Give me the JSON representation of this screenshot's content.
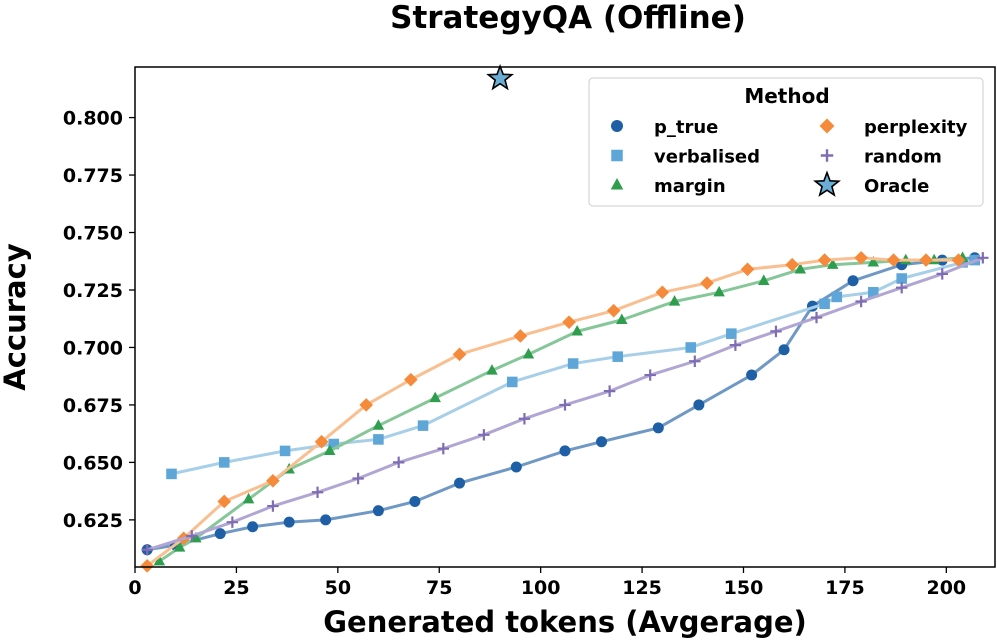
{
  "chart_data": {
    "type": "line",
    "title": "StrategyQA (Offline)",
    "xlabel": "Generated tokens (Avgerage)",
    "ylabel": "Accuracy",
    "xlim": [
      0,
      212
    ],
    "ylim": [
      0.6045,
      0.822
    ],
    "x_ticks": [
      "0",
      "25",
      "50",
      "75",
      "100",
      "125",
      "150",
      "175",
      "200"
    ],
    "x_tick_values": [
      0,
      25,
      50,
      75,
      100,
      125,
      150,
      175,
      200
    ],
    "y_ticks": [
      "0.625",
      "0.650",
      "0.675",
      "0.700",
      "0.725",
      "0.750",
      "0.775",
      "0.800"
    ],
    "y_tick_values": [
      0.625,
      0.65,
      0.675,
      0.7,
      0.725,
      0.75,
      0.775,
      0.8
    ],
    "grid": false,
    "legend": {
      "title": "Method",
      "placement": "top-right",
      "columns": 2
    },
    "series": [
      {
        "name": "p_true",
        "marker": "circle",
        "color": "#1f5fa6",
        "line_color": "#6f98c4",
        "points": [
          [
            3,
            0.612
          ],
          [
            10,
            0.614
          ],
          [
            21,
            0.619
          ],
          [
            29,
            0.622
          ],
          [
            38,
            0.624
          ],
          [
            47,
            0.625
          ],
          [
            60,
            0.629
          ],
          [
            69,
            0.633
          ],
          [
            80,
            0.641
          ],
          [
            94,
            0.648
          ],
          [
            106,
            0.655
          ],
          [
            115,
            0.659
          ],
          [
            129,
            0.665
          ],
          [
            139,
            0.675
          ],
          [
            152,
            0.688
          ],
          [
            160,
            0.699
          ],
          [
            167,
            0.718
          ],
          [
            177,
            0.729
          ],
          [
            189,
            0.736
          ],
          [
            199,
            0.738
          ],
          [
            207,
            0.739
          ]
        ]
      },
      {
        "name": "verbalised",
        "marker": "square",
        "color": "#5fa6d8",
        "line_color": "#a8cfe8",
        "points": [
          [
            9,
            0.645
          ],
          [
            22,
            0.65
          ],
          [
            37,
            0.655
          ],
          [
            49,
            0.658
          ],
          [
            60,
            0.66
          ],
          [
            71,
            0.666
          ],
          [
            93,
            0.685
          ],
          [
            108,
            0.693
          ],
          [
            119,
            0.696
          ],
          [
            137,
            0.7
          ],
          [
            147,
            0.706
          ],
          [
            170,
            0.719
          ],
          [
            173,
            0.722
          ],
          [
            182,
            0.724
          ],
          [
            189,
            0.73
          ],
          [
            204,
            0.737
          ],
          [
            207,
            0.738
          ]
        ]
      },
      {
        "name": "margin",
        "marker": "triangle",
        "color": "#2e9e4e",
        "line_color": "#86c799",
        "points": [
          [
            6,
            0.607
          ],
          [
            11,
            0.613
          ],
          [
            15,
            0.617
          ],
          [
            28,
            0.634
          ],
          [
            38,
            0.647
          ],
          [
            48,
            0.655
          ],
          [
            60,
            0.666
          ],
          [
            74,
            0.678
          ],
          [
            88,
            0.69
          ],
          [
            97,
            0.697
          ],
          [
            109,
            0.707
          ],
          [
            120,
            0.712
          ],
          [
            133,
            0.72
          ],
          [
            144,
            0.724
          ],
          [
            155,
            0.729
          ],
          [
            164,
            0.734
          ],
          [
            172,
            0.736
          ],
          [
            182,
            0.737
          ],
          [
            190,
            0.738
          ],
          [
            197,
            0.738
          ],
          [
            204,
            0.739
          ]
        ]
      },
      {
        "name": "perplexity",
        "marker": "diamond",
        "color": "#f58a3a",
        "line_color": "#f9bf90",
        "points": [
          [
            3,
            0.605
          ],
          [
            12,
            0.617
          ],
          [
            22,
            0.633
          ],
          [
            34,
            0.642
          ],
          [
            46,
            0.659
          ],
          [
            57,
            0.675
          ],
          [
            68,
            0.686
          ],
          [
            80,
            0.697
          ],
          [
            95,
            0.705
          ],
          [
            107,
            0.711
          ],
          [
            118,
            0.716
          ],
          [
            130,
            0.724
          ],
          [
            141,
            0.728
          ],
          [
            151,
            0.734
          ],
          [
            162,
            0.736
          ],
          [
            170,
            0.738
          ],
          [
            179,
            0.739
          ],
          [
            187,
            0.738
          ],
          [
            195,
            0.738
          ],
          [
            203,
            0.738
          ]
        ]
      },
      {
        "name": "random",
        "marker": "plus",
        "color": "#7e6db3",
        "line_color": "#b1a6d3",
        "points": [
          [
            3,
            0.612
          ],
          [
            14,
            0.618
          ],
          [
            24,
            0.624
          ],
          [
            34,
            0.631
          ],
          [
            45,
            0.637
          ],
          [
            55,
            0.643
          ],
          [
            65,
            0.65
          ],
          [
            76,
            0.656
          ],
          [
            86,
            0.662
          ],
          [
            96,
            0.669
          ],
          [
            106,
            0.675
          ],
          [
            117,
            0.681
          ],
          [
            127,
            0.688
          ],
          [
            138,
            0.694
          ],
          [
            148,
            0.701
          ],
          [
            158,
            0.707
          ],
          [
            168,
            0.713
          ],
          [
            179,
            0.72
          ],
          [
            189,
            0.726
          ],
          [
            199,
            0.732
          ],
          [
            209,
            0.739
          ]
        ]
      }
    ],
    "oracle": {
      "name": "Oracle",
      "marker": "star",
      "color": "#6aaed6",
      "x": 90,
      "y": 0.817
    }
  }
}
